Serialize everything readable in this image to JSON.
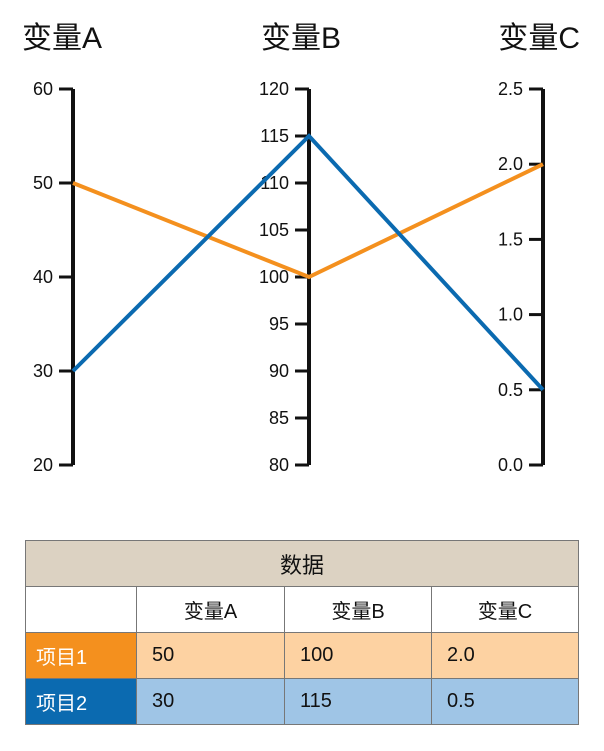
{
  "chart_data": {
    "type": "parallel-coordinates",
    "axes": [
      {
        "name": "变量A",
        "range": [
          20,
          60
        ],
        "ticks": [
          20,
          30,
          40,
          50,
          60
        ],
        "tick_labels": [
          "20",
          "30",
          "40",
          "50",
          "60"
        ]
      },
      {
        "name": "变量B",
        "range": [
          80,
          120
        ],
        "ticks": [
          80,
          85,
          90,
          95,
          100,
          105,
          110,
          115,
          120
        ],
        "tick_labels": [
          "80",
          "85",
          "90",
          "95",
          "100",
          "105",
          "110",
          "115",
          "120"
        ]
      },
      {
        "name": "变量C",
        "range": [
          0,
          2.5
        ],
        "ticks": [
          0,
          0.5,
          1,
          1.5,
          2,
          2.5
        ],
        "tick_labels": [
          "0.0",
          "0.5",
          "1.0",
          "1.5",
          "2.0",
          "2.5"
        ]
      }
    ],
    "series": [
      {
        "name": "项目1",
        "values": [
          50,
          100,
          2.0
        ],
        "value_labels": [
          "50",
          "100",
          "2.0"
        ],
        "color": "#f4901e"
      },
      {
        "name": "项目2",
        "values": [
          30,
          115,
          0.5
        ],
        "value_labels": [
          "30",
          "115",
          "0.5"
        ],
        "color": "#0b6ab0"
      }
    ]
  },
  "table": {
    "caption": "数据",
    "columns": [
      "变量A",
      "变量B",
      "变量C"
    ]
  }
}
